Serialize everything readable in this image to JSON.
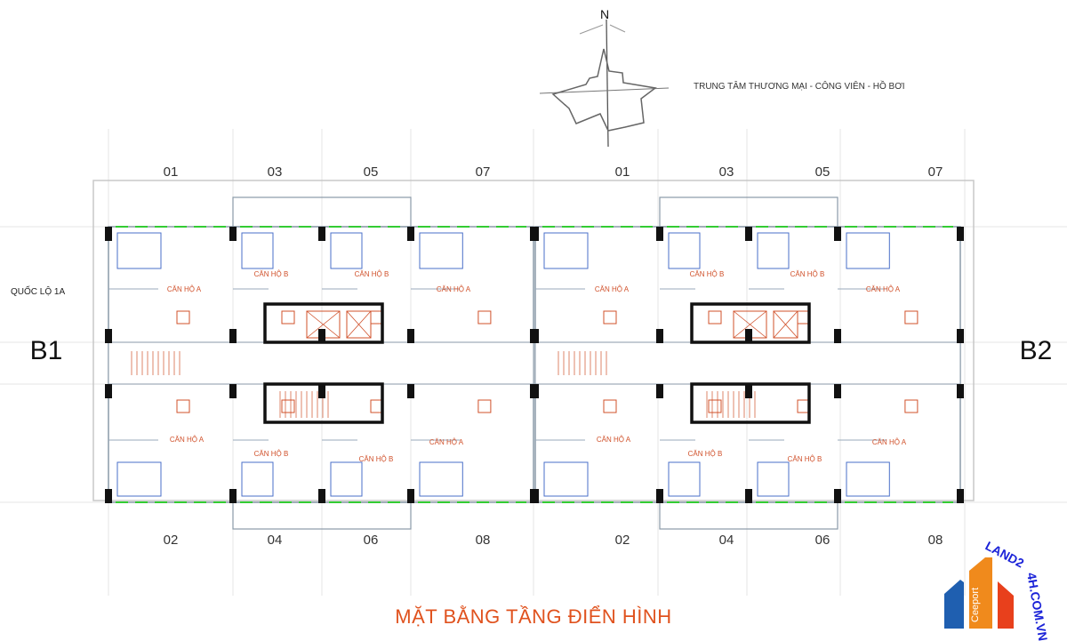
{
  "compass": {
    "north_label": "N"
  },
  "direction_note": "TRUNG TÂM THƯƠNG MẠI - CÔNG VIÊN - HỒ BƠI",
  "road_label": "QUỐC LỘ 1A",
  "blocks": {
    "left": "B1",
    "right": "B2"
  },
  "unit_numbers_top": [
    "01",
    "03",
    "05",
    "07",
    "01",
    "03",
    "05",
    "07"
  ],
  "unit_numbers_bottom": [
    "02",
    "04",
    "06",
    "08",
    "02",
    "04",
    "06",
    "08"
  ],
  "apartment_labels": {
    "type_a": "CĂN HỘ A",
    "type_b": "CĂN HỘ B"
  },
  "title": "MẶT BẰNG TẦNG ĐIỂN HÌNH",
  "logo": {
    "site": "LAND24H.COM.VN",
    "brand": "Ceeport",
    "colors": [
      "#1f5fb0",
      "#f08a1c",
      "#e8401c"
    ]
  },
  "colors": {
    "title": "#e0521e",
    "walls": "#8a9aa8",
    "windows": "#33cc33",
    "furniture": "#4a6fc8",
    "fixtures": "#d0502a",
    "columns": "#111111"
  }
}
